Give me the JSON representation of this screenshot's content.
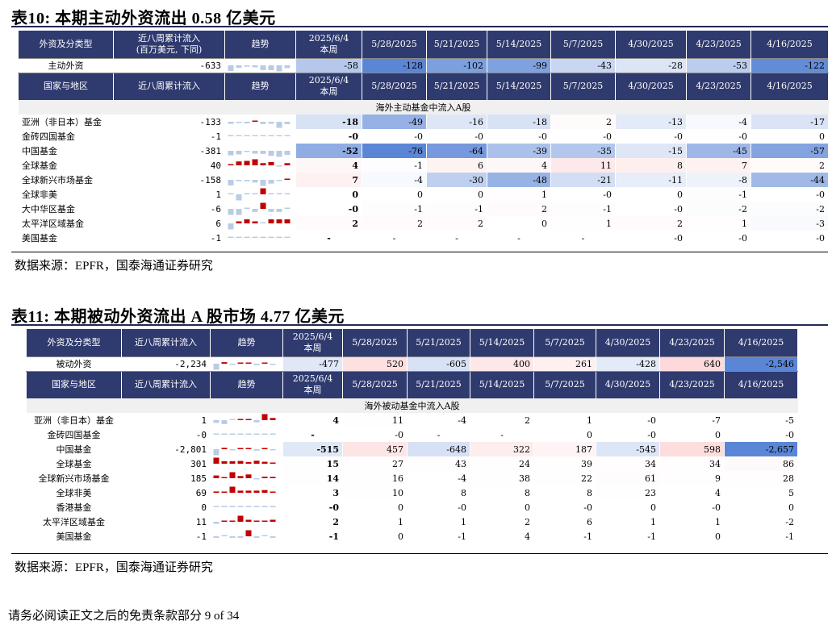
{
  "table10": {
    "title": "表10:  本期主动外资流出 0.58 亿美元",
    "header1": [
      "外资及分类型",
      "近八周累计流入\n(百万美元, 下同)",
      "趋势",
      "2025/6/4\n本周",
      "5/28/2025",
      "5/21/2025",
      "5/14/2025",
      "5/7/2025",
      "4/30/2025",
      "4/23/2025",
      "4/16/2025"
    ],
    "summary": {
      "label": "主动外资",
      "total": "-633",
      "values": [
        "-58",
        "-128",
        "-102",
        "-99",
        "-43",
        "-28",
        "-53",
        "-122"
      ]
    },
    "header2": [
      "国家与地区",
      "近八周累计流入",
      "趋势",
      "2025/6/4\n本周",
      "5/28/2025",
      "5/21/2025",
      "5/14/2025",
      "5/7/2025",
      "4/30/2025",
      "4/23/2025",
      "4/16/2025"
    ],
    "section": "海外主动基金中流入A股",
    "rows": [
      {
        "label": "亚洲（非日本）基金",
        "total": "-133",
        "values": [
          "-18",
          "-49",
          "-16",
          "-18",
          "2",
          "-13",
          "-4",
          "-17"
        ]
      },
      {
        "label": "金砖四国基金",
        "total": "-1",
        "values": [
          "-0",
          "-0",
          "-0",
          "-0",
          "-0",
          "-0",
          "-0",
          "0"
        ]
      },
      {
        "label": "中国基金",
        "total": "-381",
        "values": [
          "-52",
          "-76",
          "-64",
          "-39",
          "-35",
          "-15",
          "-45",
          "-57"
        ]
      },
      {
        "label": "全球基金",
        "total": "40",
        "values": [
          "4",
          "-1",
          "6",
          "4",
          "11",
          "8",
          "7",
          "2"
        ]
      },
      {
        "label": "全球新兴市场基金",
        "total": "-158",
        "values": [
          "7",
          "-4",
          "-30",
          "-48",
          "-21",
          "-11",
          "-8",
          "-44"
        ]
      },
      {
        "label": "全球非美",
        "total": "1",
        "values": [
          "0",
          "0",
          "0",
          "1",
          "-0",
          "0",
          "-1",
          "-0"
        ]
      },
      {
        "label": "大中华区基金",
        "total": "-6",
        "values": [
          "-0",
          "-1",
          "-1",
          "2",
          "-1",
          "-0",
          "-2",
          "-2"
        ]
      },
      {
        "label": "太平洋区域基金",
        "total": "6",
        "values": [
          "2",
          "2",
          "2",
          "0",
          "1",
          "2",
          "1",
          "-3"
        ]
      },
      {
        "label": "美国基金",
        "total": "-1",
        "values": [
          "-",
          "-",
          "-",
          "-",
          "-",
          "-0",
          "-0",
          "-0"
        ]
      }
    ],
    "source": "数据来源：EPFR，国泰海通证券研究"
  },
  "table11": {
    "title": "表11:  本期被动外资流出 A 股市场 4.77 亿美元",
    "header1": [
      "外资及分类型",
      "近八周累计流入",
      "趋势",
      "2025/6/4\n本周",
      "5/28/2025",
      "5/21/2025",
      "5/14/2025",
      "5/7/2025",
      "4/30/2025",
      "4/23/2025",
      "4/16/2025"
    ],
    "summary": {
      "label": "被动外资",
      "total": "-2,234",
      "values": [
        "-477",
        "520",
        "-605",
        "400",
        "261",
        "-428",
        "640",
        "-2,546"
      ]
    },
    "header2": [
      "国家与地区",
      "近八周累计流入",
      "趋势",
      "2025/6/4\n本周",
      "5/28/2025",
      "5/21/2025",
      "5/14/2025",
      "5/7/2025",
      "4/30/2025",
      "4/23/2025",
      "4/16/2025"
    ],
    "section": "海外被动基金中流入A股",
    "rows": [
      {
        "label": "亚洲（非日本）基金",
        "total": "1",
        "values": [
          "4",
          "11",
          "-4",
          "2",
          "1",
          "-0",
          "-7",
          "-5"
        ]
      },
      {
        "label": "金砖四国基金",
        "total": "-0",
        "values": [
          "-",
          "-0",
          "-",
          "-",
          "0",
          "-0",
          "0",
          "-0"
        ]
      },
      {
        "label": "中国基金",
        "total": "-2,801",
        "values": [
          "-515",
          "457",
          "-648",
          "322",
          "187",
          "-545",
          "598",
          "-2,657"
        ]
      },
      {
        "label": "全球基金",
        "total": "301",
        "values": [
          "15",
          "27",
          "43",
          "24",
          "39",
          "34",
          "34",
          "86"
        ]
      },
      {
        "label": "全球新兴市场基金",
        "total": "185",
        "values": [
          "14",
          "16",
          "-4",
          "38",
          "22",
          "61",
          "9",
          "28"
        ]
      },
      {
        "label": "全球非美",
        "total": "69",
        "values": [
          "3",
          "10",
          "8",
          "8",
          "8",
          "23",
          "4",
          "5"
        ]
      },
      {
        "label": "香港基金",
        "total": "0",
        "values": [
          "-0",
          "0",
          "-0",
          "0",
          "-0",
          "0",
          "-0",
          "0"
        ]
      },
      {
        "label": "太平洋区域基金",
        "total": "11",
        "values": [
          "2",
          "1",
          "1",
          "2",
          "6",
          "1",
          "1",
          "-2"
        ]
      },
      {
        "label": "美国基金",
        "total": "-1",
        "values": [
          "-1",
          "0",
          "-1",
          "4",
          "-1",
          "-1",
          "0",
          "-1"
        ]
      }
    ],
    "source": "数据来源：EPFR，国泰海通证券研究"
  },
  "footer": "请务必阅读正文之后的免责条款部分 9 of 34",
  "colors": {
    "header_bg": "#2f3a6e",
    "positive": "#f4686a",
    "negative": "#5b86d6",
    "spark_pos": "#c00000",
    "spark_neg": "#b8cce4"
  }
}
